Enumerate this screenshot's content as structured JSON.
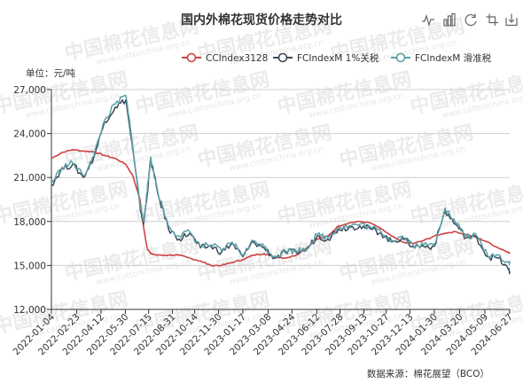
{
  "toolbox": {
    "icons": [
      "line-chart-icon",
      "bar-chart-icon",
      "restore-icon",
      "save-image-icon"
    ]
  },
  "watermark": {
    "text": "中国棉花信息网",
    "sub": "www.cottonchina.org.cn"
  },
  "chart_data": {
    "type": "line",
    "title": "国内外棉花现货价格走势对比",
    "unit_label": "单位：元/吨",
    "source_label": "数据来源：棉花展望（BCO）",
    "ylim": [
      12000,
      27000
    ],
    "y_ticks": [
      12000,
      15000,
      18000,
      21000,
      24000,
      27000
    ],
    "y_tick_labels": [
      "12,000",
      "15,000",
      "18,000",
      "21,000",
      "24,000",
      "27,000"
    ],
    "x_ticks": [
      "2022-01-04",
      "2022-02-23",
      "2022-04-12",
      "2022-05-30",
      "2022-07-15",
      "2022-08-31",
      "2022-10-14",
      "2022-11-30",
      "2023-01-17",
      "2023-03-08",
      "2023-04-24",
      "2023-06-12",
      "2023-07-28",
      "2023-09-13",
      "2023-10-27",
      "2023-12-13",
      "2024-01-30",
      "2024-03-20",
      "2024-05-09",
      "2024-06-27"
    ],
    "grid": "horizontal",
    "legend_position": "top-right",
    "series": [
      {
        "name": "CCIndex3128",
        "color": "#d04242",
        "x": [
          "2022-01-04",
          "2022-01-25",
          "2022-02-15",
          "2022-03-08",
          "2022-03-29",
          "2022-04-19",
          "2022-05-10",
          "2022-05-31",
          "2022-06-14",
          "2022-06-28",
          "2022-07-05",
          "2022-07-12",
          "2022-07-19",
          "2022-08-02",
          "2022-08-23",
          "2022-09-13",
          "2022-10-04",
          "2022-10-25",
          "2022-11-15",
          "2022-12-06",
          "2022-12-27",
          "2023-01-17",
          "2023-02-07",
          "2023-02-28",
          "2023-03-21",
          "2023-04-11",
          "2023-05-02",
          "2023-05-23",
          "2023-06-13",
          "2023-07-04",
          "2023-07-25",
          "2023-08-15",
          "2023-09-05",
          "2023-09-26",
          "2023-10-17",
          "2023-11-07",
          "2023-11-28",
          "2023-12-19",
          "2024-01-09",
          "2024-01-30",
          "2024-02-20",
          "2024-03-12",
          "2024-04-02",
          "2024-04-23",
          "2024-05-14",
          "2024-06-04",
          "2024-06-25",
          "2024-06-27"
        ],
        "values": [
          22300,
          22700,
          22900,
          22800,
          22750,
          22500,
          22300,
          21900,
          21100,
          19500,
          17600,
          16200,
          15800,
          15700,
          15700,
          15700,
          15500,
          15300,
          15000,
          15000,
          15200,
          15400,
          15700,
          15800,
          15600,
          15500,
          15700,
          16200,
          16800,
          17000,
          17700,
          17900,
          18000,
          17900,
          17500,
          17000,
          16600,
          16500,
          16700,
          17000,
          17200,
          17300,
          17100,
          16900,
          16600,
          16200,
          15900,
          15800
        ]
      },
      {
        "name": "FCIndexM 1%关税",
        "color": "#3a4a5a",
        "x": [
          "2022-01-04",
          "2022-01-25",
          "2022-02-15",
          "2022-03-08",
          "2022-03-29",
          "2022-04-19",
          "2022-05-10",
          "2022-05-31",
          "2022-06-14",
          "2022-06-28",
          "2022-07-05",
          "2022-07-12",
          "2022-07-19",
          "2022-08-02",
          "2022-08-23",
          "2022-09-13",
          "2022-10-04",
          "2022-10-25",
          "2022-11-15",
          "2022-12-06",
          "2022-12-27",
          "2023-01-17",
          "2023-02-07",
          "2023-02-28",
          "2023-03-21",
          "2023-04-11",
          "2023-05-02",
          "2023-05-23",
          "2023-06-13",
          "2023-07-04",
          "2023-07-25",
          "2023-08-15",
          "2023-09-05",
          "2023-09-26",
          "2023-10-17",
          "2023-11-07",
          "2023-11-28",
          "2023-12-19",
          "2024-01-09",
          "2024-01-30",
          "2024-02-20",
          "2024-03-12",
          "2024-04-02",
          "2024-04-23",
          "2024-05-14",
          "2024-06-04",
          "2024-06-25",
          "2024-06-27"
        ],
        "values": [
          20500,
          21600,
          21900,
          21000,
          22400,
          24800,
          25800,
          26300,
          22800,
          19000,
          17800,
          19800,
          22300,
          19900,
          17500,
          16800,
          17200,
          16200,
          16300,
          15900,
          16500,
          15600,
          16600,
          16200,
          15500,
          15900,
          15900,
          16100,
          17000,
          16800,
          17500,
          17600,
          17700,
          17500,
          17200,
          16600,
          16900,
          16300,
          16300,
          16300,
          18700,
          17800,
          16900,
          16900,
          15600,
          15500,
          14700,
          14600
        ]
      },
      {
        "name": "FCIndexM 滑准税",
        "color": "#5ba0a8",
        "x": [
          "2022-01-04",
          "2022-01-25",
          "2022-02-15",
          "2022-03-08",
          "2022-03-29",
          "2022-04-19",
          "2022-05-10",
          "2022-05-31",
          "2022-06-14",
          "2022-06-28",
          "2022-07-05",
          "2022-07-12",
          "2022-07-19",
          "2022-08-02",
          "2022-08-23",
          "2022-09-13",
          "2022-10-04",
          "2022-10-25",
          "2022-11-15",
          "2022-12-06",
          "2022-12-27",
          "2023-01-17",
          "2023-02-07",
          "2023-02-28",
          "2023-03-21",
          "2023-04-11",
          "2023-05-02",
          "2023-05-23",
          "2023-06-13",
          "2023-07-04",
          "2023-07-25",
          "2023-08-15",
          "2023-09-05",
          "2023-09-26",
          "2023-10-17",
          "2023-11-07",
          "2023-11-28",
          "2023-12-19",
          "2024-01-09",
          "2024-01-30",
          "2024-02-20",
          "2024-03-12",
          "2024-04-02",
          "2024-04-23",
          "2024-05-14",
          "2024-06-04",
          "2024-06-25",
          "2024-06-27"
        ],
        "values": [
          20600,
          21700,
          22000,
          21100,
          22500,
          24900,
          26000,
          26600,
          23000,
          19200,
          18000,
          20000,
          22400,
          20000,
          17700,
          17000,
          17300,
          16300,
          16400,
          16000,
          16600,
          15700,
          16700,
          16300,
          15600,
          16000,
          16000,
          16200,
          17100,
          16900,
          17600,
          17700,
          17800,
          17600,
          17300,
          16700,
          17000,
          16400,
          16400,
          16400,
          18900,
          17900,
          17000,
          17000,
          15700,
          15700,
          15200,
          15300
        ]
      }
    ]
  }
}
